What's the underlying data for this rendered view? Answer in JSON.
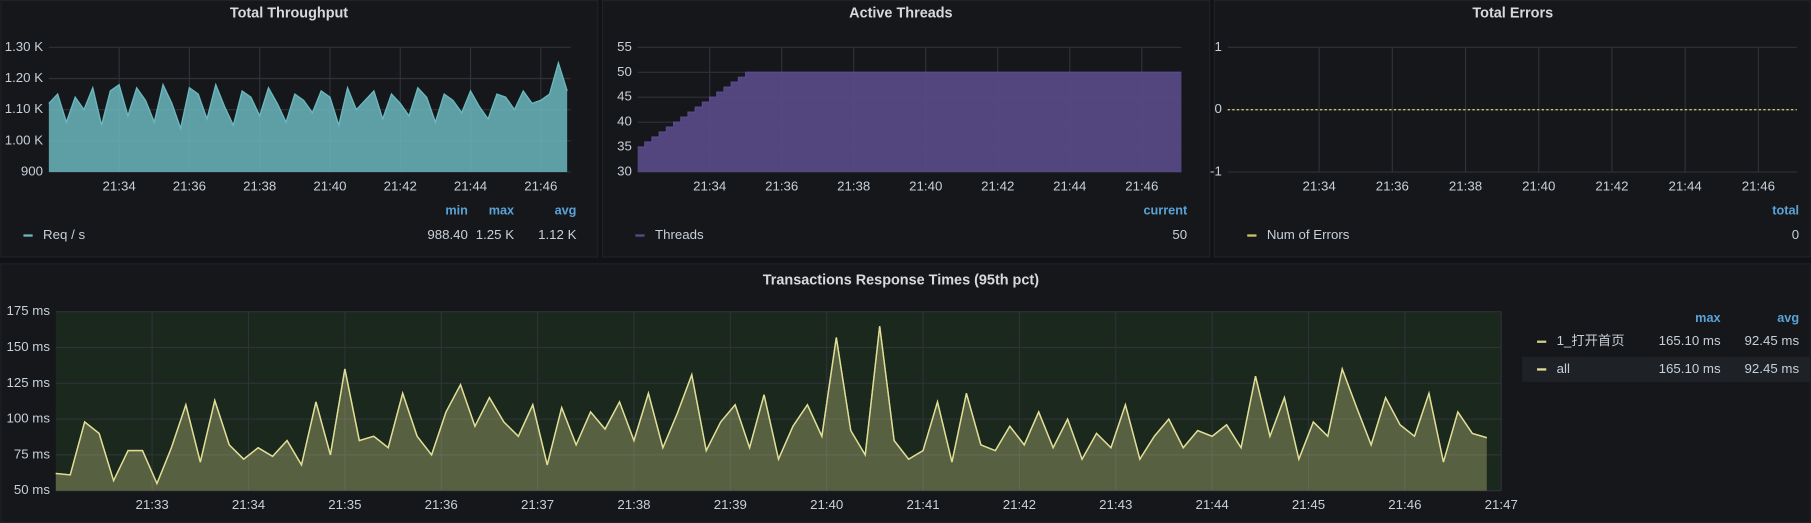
{
  "chart_data": [
    {
      "type": "area",
      "title": "Total Throughput",
      "x": [
        1292,
        1292.25,
        1292.5,
        1292.75,
        1293,
        1293.25,
        1293.5,
        1293.75,
        1294,
        1294.25,
        1294.5,
        1294.75,
        1295,
        1295.25,
        1295.5,
        1295.75,
        1296,
        1296.25,
        1296.5,
        1296.75,
        1297,
        1297.25,
        1297.5,
        1297.75,
        1298,
        1298.25,
        1298.5,
        1298.75,
        1299,
        1299.25,
        1299.5,
        1299.75,
        1300,
        1300.25,
        1300.5,
        1300.75,
        1301,
        1301.25,
        1301.5,
        1301.75,
        1302,
        1302.25,
        1302.5,
        1302.75,
        1303,
        1303.25,
        1303.5,
        1303.75,
        1304,
        1304.25,
        1304.5,
        1304.75,
        1305,
        1305.25,
        1305.5,
        1305.75,
        1306,
        1306.25,
        1306.5,
        1306.75
      ],
      "series": [
        {
          "name": "Req / s",
          "color": "#6bb7be",
          "values": [
            1120,
            1150,
            1060,
            1140,
            1100,
            1170,
            1050,
            1160,
            1180,
            1080,
            1170,
            1130,
            1060,
            1180,
            1120,
            1040,
            1170,
            1150,
            1070,
            1180,
            1110,
            1050,
            1160,
            1140,
            1080,
            1170,
            1120,
            1060,
            1150,
            1130,
            1090,
            1160,
            1140,
            1050,
            1170,
            1100,
            1130,
            1160,
            1070,
            1150,
            1120,
            1080,
            1170,
            1140,
            1060,
            1150,
            1130,
            1090,
            1160,
            1110,
            1070,
            1150,
            1140,
            1100,
            1160,
            1120,
            1130,
            1150,
            1250,
            1160
          ],
          "legend_values": [
            "988.40",
            "1.25 K",
            "1.12 K"
          ]
        }
      ],
      "legend_columns": [
        "min",
        "max",
        "avg"
      ],
      "fill_opacity": 0.85,
      "grid": true,
      "xlim": [
        1292,
        1306.85
      ],
      "xticks": [
        {
          "value": 1294,
          "label": "21:34"
        },
        {
          "value": 1296,
          "label": "21:36"
        },
        {
          "value": 1298,
          "label": "21:38"
        },
        {
          "value": 1300,
          "label": "21:40"
        },
        {
          "value": 1302,
          "label": "21:42"
        },
        {
          "value": 1304,
          "label": "21:44"
        },
        {
          "value": 1306,
          "label": "21:46"
        }
      ],
      "ylim": [
        900,
        1300
      ],
      "yticks": [
        900,
        {
          "value": 1000,
          "label": "1.00 K"
        },
        {
          "value": 1100,
          "label": "1.10 K"
        },
        {
          "value": 1200,
          "label": "1.20 K"
        },
        {
          "value": 1300,
          "label": "1.30 K"
        }
      ]
    },
    {
      "type": "area",
      "title": "Active Threads",
      "step": true,
      "x": [
        1292,
        1292.2,
        1292.4,
        1292.6,
        1292.8,
        1293,
        1293.2,
        1293.4,
        1293.6,
        1293.8,
        1294,
        1294.2,
        1294.4,
        1294.6,
        1294.8,
        1295,
        1307.1
      ],
      "series": [
        {
          "name": "Threads",
          "color": "#5a4a8a",
          "values": [
            35,
            36,
            37,
            38,
            39,
            40,
            41,
            42,
            43,
            44,
            45,
            46,
            47,
            48,
            49,
            50,
            50
          ],
          "legend_values": [
            "50"
          ]
        }
      ],
      "legend_columns": [
        "current"
      ],
      "fill_opacity": 0.9,
      "grid": true,
      "xlim": [
        1292,
        1307.1
      ],
      "xticks": [
        {
          "value": 1294,
          "label": "21:34"
        },
        {
          "value": 1296,
          "label": "21:36"
        },
        {
          "value": 1298,
          "label": "21:38"
        },
        {
          "value": 1300,
          "label": "21:40"
        },
        {
          "value": 1302,
          "label": "21:42"
        },
        {
          "value": 1304,
          "label": "21:44"
        },
        {
          "value": 1306,
          "label": "21:46"
        }
      ],
      "ylim": [
        30,
        55
      ],
      "yticks": [
        30,
        35,
        40,
        45,
        50,
        55
      ]
    },
    {
      "type": "line",
      "title": "Total Errors",
      "dashed": true,
      "x": [
        1291.5,
        1307.05
      ],
      "series": [
        {
          "name": "Num of Errors",
          "color": "#c9c56a",
          "values": [
            0,
            0
          ],
          "legend_values": [
            "0"
          ]
        }
      ],
      "legend_columns": [
        "total"
      ],
      "grid": true,
      "xlim": [
        1291.5,
        1307.05
      ],
      "xticks": [
        {
          "value": 1294,
          "label": "21:34"
        },
        {
          "value": 1296,
          "label": "21:36"
        },
        {
          "value": 1298,
          "label": "21:38"
        },
        {
          "value": 1300,
          "label": "21:40"
        },
        {
          "value": 1302,
          "label": "21:42"
        },
        {
          "value": 1304,
          "label": "21:44"
        },
        {
          "value": 1306,
          "label": "21:46"
        }
      ],
      "ylim": [
        -1,
        1
      ],
      "yticks": [
        -1,
        0,
        1
      ]
    },
    {
      "type": "area",
      "title": "Transactions Response Times (95th pct)",
      "x": [
        1292,
        1292.15,
        1292.3,
        1292.45,
        1292.6,
        1292.75,
        1292.9,
        1293.05,
        1293.2,
        1293.35,
        1293.5,
        1293.65,
        1293.8,
        1293.95,
        1294.1,
        1294.25,
        1294.4,
        1294.55,
        1294.7,
        1294.85,
        1295,
        1295.15,
        1295.3,
        1295.45,
        1295.6,
        1295.75,
        1295.9,
        1296.05,
        1296.2,
        1296.35,
        1296.5,
        1296.65,
        1296.8,
        1296.95,
        1297.1,
        1297.25,
        1297.4,
        1297.55,
        1297.7,
        1297.85,
        1298,
        1298.15,
        1298.3,
        1298.45,
        1298.6,
        1298.75,
        1298.9,
        1299.05,
        1299.2,
        1299.35,
        1299.5,
        1299.65,
        1299.8,
        1299.95,
        1300.1,
        1300.25,
        1300.4,
        1300.55,
        1300.7,
        1300.85,
        1301,
        1301.15,
        1301.3,
        1301.45,
        1301.6,
        1301.75,
        1301.9,
        1302.05,
        1302.2,
        1302.35,
        1302.5,
        1302.65,
        1302.8,
        1302.95,
        1303.1,
        1303.25,
        1303.4,
        1303.55,
        1303.7,
        1303.85,
        1304,
        1304.15,
        1304.3,
        1304.45,
        1304.6,
        1304.75,
        1304.9,
        1305.05,
        1305.2,
        1305.35,
        1305.5,
        1305.65,
        1305.8,
        1305.95,
        1306.1,
        1306.25,
        1306.4,
        1306.55,
        1306.7,
        1306.85
      ],
      "series": [
        {
          "name": "1_打开首页",
          "color": "#cfcd85",
          "values": [
            62,
            61,
            98,
            90,
            57,
            78,
            78,
            55,
            80,
            110,
            70,
            113,
            82,
            72,
            80,
            74,
            85,
            68,
            112,
            75,
            135,
            85,
            88,
            80,
            118,
            88,
            75,
            105,
            124,
            95,
            115,
            98,
            88,
            110,
            68,
            108,
            82,
            105,
            93,
            112,
            85,
            118,
            80,
            104,
            131,
            78,
            98,
            110,
            80,
            117,
            72,
            95,
            110,
            88,
            157,
            92,
            75,
            165,
            85,
            72,
            78,
            112,
            70,
            118,
            82,
            78,
            95,
            82,
            105,
            80,
            100,
            72,
            90,
            80,
            110,
            72,
            88,
            100,
            80,
            92,
            88,
            96,
            80,
            130,
            88,
            115,
            72,
            98,
            88,
            135,
            108,
            82,
            115,
            96,
            88,
            118,
            70,
            105,
            90,
            87
          ],
          "legend_values": [
            "165.10 ms",
            "92.45 ms"
          ]
        },
        {
          "name": "all",
          "color": "#e0dd96",
          "values": [
            62,
            61,
            98,
            90,
            57,
            78,
            78,
            55,
            80,
            110,
            70,
            113,
            82,
            72,
            80,
            74,
            85,
            68,
            112,
            75,
            135,
            85,
            88,
            80,
            118,
            88,
            75,
            105,
            124,
            95,
            115,
            98,
            88,
            110,
            68,
            108,
            82,
            105,
            93,
            112,
            85,
            118,
            80,
            104,
            131,
            78,
            98,
            110,
            80,
            117,
            72,
            95,
            110,
            88,
            157,
            92,
            75,
            165,
            85,
            72,
            78,
            112,
            70,
            118,
            82,
            78,
            95,
            82,
            105,
            80,
            100,
            72,
            90,
            80,
            110,
            72,
            88,
            100,
            80,
            92,
            88,
            96,
            80,
            130,
            88,
            115,
            72,
            98,
            88,
            135,
            108,
            82,
            115,
            96,
            88,
            118,
            70,
            105,
            90,
            87
          ],
          "legend_values": [
            "165.10 ms",
            "92.45 ms"
          ]
        }
      ],
      "legend_columns": [
        "max",
        "avg"
      ],
      "fill_opacity": 0.18,
      "grid": true,
      "xlim": [
        1292,
        1307
      ],
      "xticks": [
        {
          "value": 1293,
          "label": "21:33"
        },
        {
          "value": 1294,
          "label": "21:34"
        },
        {
          "value": 1295,
          "label": "21:35"
        },
        {
          "value": 1296,
          "label": "21:36"
        },
        {
          "value": 1297,
          "label": "21:37"
        },
        {
          "value": 1298,
          "label": "21:38"
        },
        {
          "value": 1299,
          "label": "21:39"
        },
        {
          "value": 1300,
          "label": "21:40"
        },
        {
          "value": 1301,
          "label": "21:41"
        },
        {
          "value": 1302,
          "label": "21:42"
        },
        {
          "value": 1303,
          "label": "21:43"
        },
        {
          "value": 1304,
          "label": "21:44"
        },
        {
          "value": 1305,
          "label": "21:45"
        },
        {
          "value": 1306,
          "label": "21:46"
        },
        {
          "value": 1307,
          "label": "21:47"
        }
      ],
      "ylim": [
        50,
        175
      ],
      "yticks": [
        {
          "value": 50,
          "label": "50 ms"
        },
        {
          "value": 75,
          "label": "75 ms"
        },
        {
          "value": 100,
          "label": "100 ms"
        },
        {
          "value": 125,
          "label": "125 ms"
        },
        {
          "value": 150,
          "label": "150 ms"
        },
        {
          "value": 175,
          "label": "175 ms"
        }
      ]
    }
  ]
}
